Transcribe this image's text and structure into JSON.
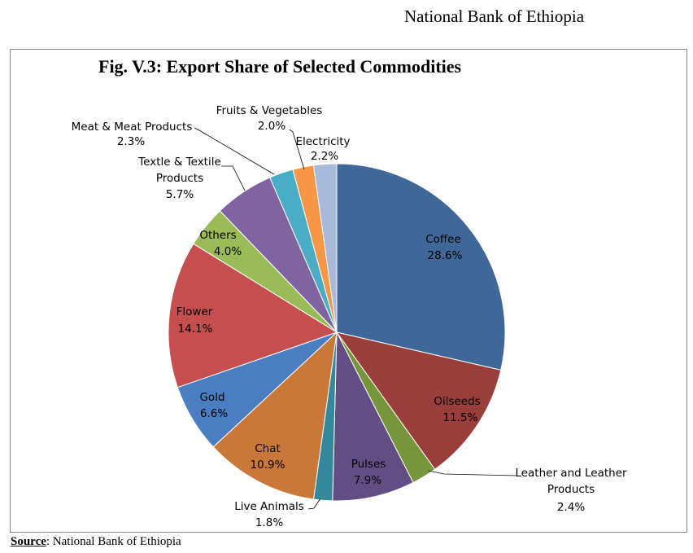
{
  "header": {
    "org_name": "National Bank of Ethiopia"
  },
  "footer": {
    "source_label": "Source",
    "source_text": ": National Bank of Ethiopia"
  },
  "chart_data": {
    "type": "pie",
    "title": "Fig. V.3: Export Share of Selected Commodities",
    "start_angle_deg": 0,
    "direction": "clockwise",
    "slices": [
      {
        "name": "Coffee",
        "value": 28.6,
        "label": "28.6%",
        "color": "#3f6899"
      },
      {
        "name": "Oilseeds",
        "value": 11.5,
        "label": "11.5%",
        "color": "#9a3e3c"
      },
      {
        "name": "Leather and Leather Products",
        "value": 2.4,
        "label": "2.4%",
        "color": "#77963b"
      },
      {
        "name": "Pulses",
        "value": 7.9,
        "label": "7.9%",
        "color": "#634d85"
      },
      {
        "name": "Live Animals",
        "value": 1.8,
        "label": "1.8%",
        "color": "#35879c"
      },
      {
        "name": "Chat",
        "value": 10.9,
        "label": "10.9%",
        "color": "#c9783a"
      },
      {
        "name": "Gold",
        "value": 6.6,
        "label": "6.6%",
        "color": "#4a7ec0"
      },
      {
        "name": "Flower",
        "value": 14.1,
        "label": "14.1%",
        "color": "#c44f4e"
      },
      {
        "name": "Others",
        "value": 4.0,
        "label": "4.0%",
        "color": "#9bbb59"
      },
      {
        "name": "Textle & Textile Products",
        "value": 5.7,
        "label": "5.7%",
        "color": "#8064a2"
      },
      {
        "name": "Meat & Meat Products",
        "value": 2.3,
        "label": "2.3%",
        "color": "#4bacc6"
      },
      {
        "name": "Fruits & Vegetables",
        "value": 2.0,
        "label": "2.0%",
        "color": "#f79646"
      },
      {
        "name": "Electricity",
        "value": 2.2,
        "label": "2.2%",
        "color": "#a9b9d9"
      }
    ]
  }
}
